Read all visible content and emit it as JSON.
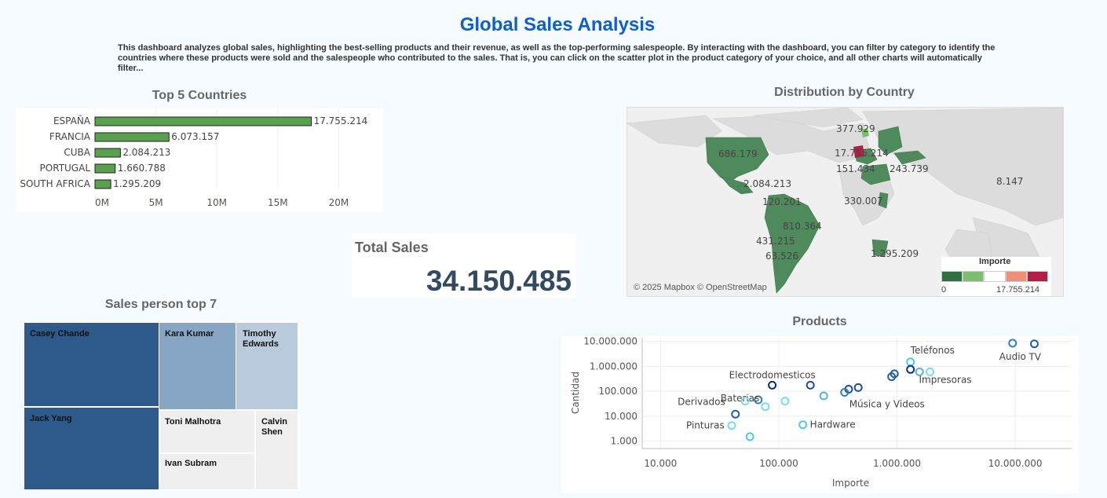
{
  "header": {
    "title": "Global Sales Analysis",
    "description": "This dashboard analyzes global sales, highlighting the best-selling products and their revenue, as well as the top-performing salespeople. By interacting with the dashboard, you can filter by category to identify the countries where these products were sold and the salespeople who contributed to the sales. That is, you can click on the scatter plot in the product category of your choice, and all other charts will automatically filter..."
  },
  "kpi": {
    "label": "Total Sales",
    "value": "34.150.485"
  },
  "map": {
    "title": "Distribution by Country",
    "attribution": "© 2025 Mapbox © OpenStreetMap",
    "legend_title": "Importe",
    "legend_min": "0",
    "legend_max": "17.755.214",
    "legend_colors": [
      "#2f6f42",
      "#7ebd6d",
      "#ffffff",
      "#f0907a",
      "#b31e49"
    ],
    "labels": [
      "686.179",
      "377.929",
      "17.755.214",
      "151.434",
      "243.739",
      "8.147",
      "2.084.213",
      "120.201",
      "330.007",
      "810.364",
      "431.215",
      "63.526",
      "1.295.209"
    ]
  },
  "treemap": {
    "title": "Sales person top 7",
    "names": [
      "Casey Chande",
      "Jack Yang",
      "Kara Kumar",
      "Timothy Edwards",
      "Toni Malhotra",
      "Calvin Shen",
      "Ivan Subram"
    ]
  },
  "chart_data": [
    {
      "type": "bar",
      "title": "Top 5 Countries",
      "categories": [
        "ESPAÑA",
        "FRANCIA",
        "CUBA",
        "PORTUGAL",
        "SOUTH AFRICA"
      ],
      "values": [
        17755214,
        6073157,
        2084213,
        1660788,
        1295209
      ],
      "value_labels": [
        "17.755.214",
        "6.073.157",
        "2.084.213",
        "1.660.788",
        "1.295.209"
      ],
      "xlim": [
        0,
        23000000
      ],
      "xticks": [
        0,
        5000000,
        10000000,
        15000000,
        20000000
      ],
      "xtick_labels": [
        "0M",
        "5M",
        "10M",
        "15M",
        "20M"
      ],
      "bar_color": "#59a14f",
      "grid": true
    },
    {
      "type": "scatter",
      "title": "Products",
      "xlabel": "Importe",
      "ylabel": "Cantidad",
      "xscale": "log",
      "yscale": "log",
      "xlim": [
        7000,
        30000000
      ],
      "ylim": [
        500,
        14000000
      ],
      "xticks": [
        10000,
        100000,
        1000000,
        10000000
      ],
      "xtick_labels": [
        "10.000",
        "100.000",
        "1.000.000",
        "10.000.000"
      ],
      "yticks": [
        1000,
        10000,
        100000,
        1000000,
        10000000
      ],
      "ytick_labels": [
        "1.000",
        "10.000",
        "100.000",
        "1.000.000",
        "10.000.000"
      ],
      "points": [
        {
          "x": 9500000,
          "y": 8500000,
          "color": "#2f7fc1",
          "label": "Audio"
        },
        {
          "x": 14500000,
          "y": 8000000,
          "color": "#1f5fa8",
          "label": "TV"
        },
        {
          "x": 1300000,
          "y": 1500000,
          "color": "#55c7e6",
          "label": "Teléfonos"
        },
        {
          "x": 1300000,
          "y": 750000,
          "color": "#12347a",
          "label": ""
        },
        {
          "x": 1550000,
          "y": 600000,
          "color": "#4fb6e0",
          "label": ""
        },
        {
          "x": 1900000,
          "y": 600000,
          "color": "#7fd9ef",
          "label": "Impresoras"
        },
        {
          "x": 950000,
          "y": 500000,
          "color": "#1f5fa8",
          "label": ""
        },
        {
          "x": 900000,
          "y": 380000,
          "color": "#1f5fa8",
          "label": ""
        },
        {
          "x": 88000,
          "y": 175000,
          "color": "#0b2f73",
          "label": "Electrodomesticos"
        },
        {
          "x": 185000,
          "y": 175000,
          "color": "#1f4f9a",
          "label": ""
        },
        {
          "x": 470000,
          "y": 140000,
          "color": "#1f4f9a",
          "label": ""
        },
        {
          "x": 390000,
          "y": 120000,
          "color": "#1f4f9a",
          "label": ""
        },
        {
          "x": 360000,
          "y": 90000,
          "color": "#2f7fc1",
          "label": "Música y Videos"
        },
        {
          "x": 240000,
          "y": 65000,
          "color": "#4fb6e0",
          "label": ""
        },
        {
          "x": 67000,
          "y": 45000,
          "color": "#2f7fc1",
          "label": "Baterias"
        },
        {
          "x": 52000,
          "y": 40000,
          "color": "#7fd9ef",
          "label": "Derivados"
        },
        {
          "x": 113000,
          "y": 40000,
          "color": "#7fd9ef",
          "label": ""
        },
        {
          "x": 77000,
          "y": 24000,
          "color": "#7fd9ef",
          "label": ""
        },
        {
          "x": 43000,
          "y": 12000,
          "color": "#1f5fa8",
          "label": ""
        },
        {
          "x": 40000,
          "y": 4200,
          "color": "#7fd9ef",
          "label": "Pinturas"
        },
        {
          "x": 160000,
          "y": 4500,
          "color": "#55c7e6",
          "label": "Hardware"
        },
        {
          "x": 57000,
          "y": 1500,
          "color": "#55c7e6",
          "label": ""
        }
      ],
      "grid": true
    }
  ]
}
